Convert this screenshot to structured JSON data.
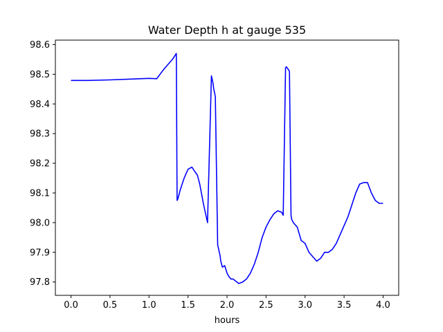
{
  "chart_data": {
    "type": "line",
    "title": "Water Depth h at gauge 535",
    "xlabel": "hours",
    "ylabel": "",
    "xlim": [
      -0.2,
      4.2
    ],
    "ylim": [
      97.755,
      98.615
    ],
    "grid": false,
    "legend": "none",
    "x_ticks": [
      0.0,
      0.5,
      1.0,
      1.5,
      2.0,
      2.5,
      3.0,
      3.5,
      4.0
    ],
    "x_tick_labels": [
      "0.0",
      "0.5",
      "1.0",
      "1.5",
      "2.0",
      "2.5",
      "3.0",
      "3.5",
      "4.0"
    ],
    "y_ticks": [
      97.8,
      97.9,
      98.0,
      98.1,
      98.2,
      98.3,
      98.4,
      98.5,
      98.6
    ],
    "y_tick_labels": [
      "97.8",
      "97.9",
      "98.0",
      "98.1",
      "98.2",
      "98.3",
      "98.4",
      "98.5",
      "98.6"
    ],
    "series": [
      {
        "color": "#0000ff",
        "x": [
          0.0,
          0.2,
          0.5,
          0.8,
          1.0,
          1.1,
          1.15,
          1.2,
          1.3,
          1.35,
          1.36,
          1.37,
          1.4,
          1.45,
          1.5,
          1.55,
          1.58,
          1.62,
          1.65,
          1.7,
          1.75,
          1.8,
          1.82,
          1.83,
          1.85,
          1.88,
          1.91,
          1.92,
          1.94,
          1.97,
          2.0,
          2.02,
          2.05,
          2.08,
          2.1,
          2.15,
          2.2,
          2.25,
          2.3,
          2.35,
          2.4,
          2.45,
          2.5,
          2.55,
          2.6,
          2.65,
          2.7,
          2.72,
          2.75,
          2.76,
          2.77,
          2.8,
          2.82,
          2.83,
          2.85,
          2.9,
          2.95,
          3.0,
          3.05,
          3.1,
          3.15,
          3.2,
          3.25,
          3.3,
          3.35,
          3.4,
          3.45,
          3.5,
          3.55,
          3.6,
          3.65,
          3.7,
          3.75,
          3.8,
          3.85,
          3.9,
          3.95,
          4.0
        ],
        "y": [
          98.479,
          98.479,
          98.481,
          98.484,
          98.486,
          98.485,
          98.503,
          98.52,
          98.55,
          98.57,
          98.075,
          98.08,
          98.11,
          98.15,
          98.18,
          98.187,
          98.175,
          98.16,
          98.13,
          98.06,
          98.0,
          98.495,
          98.47,
          98.45,
          98.425,
          97.925,
          97.89,
          97.87,
          97.85,
          97.855,
          97.83,
          97.82,
          97.81,
          97.81,
          97.805,
          97.795,
          97.8,
          97.81,
          97.83,
          97.86,
          97.9,
          97.95,
          97.985,
          98.01,
          98.03,
          98.04,
          98.035,
          98.025,
          98.522,
          98.525,
          98.522,
          98.51,
          98.025,
          98.01,
          98.0,
          97.985,
          97.94,
          97.93,
          97.9,
          97.885,
          97.87,
          97.88,
          97.9,
          97.9,
          97.91,
          97.93,
          97.96,
          97.99,
          98.02,
          98.06,
          98.1,
          98.13,
          98.135,
          98.135,
          98.1,
          98.075,
          98.065,
          98.065
        ]
      }
    ]
  }
}
